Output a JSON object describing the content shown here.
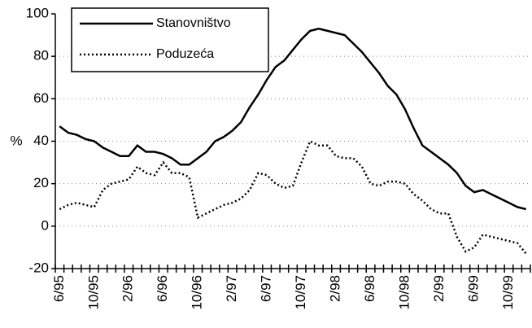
{
  "chart_data": {
    "type": "line",
    "ylabel": "%",
    "categories": [
      "6/95",
      null,
      null,
      null,
      "10/95",
      null,
      null,
      null,
      "2/96",
      null,
      null,
      null,
      "6/96",
      null,
      null,
      null,
      "10/96",
      null,
      null,
      null,
      "2/97",
      null,
      null,
      null,
      "6/97",
      null,
      null,
      null,
      "10/97",
      null,
      null,
      null,
      "2/98",
      null,
      null,
      null,
      "6/98",
      null,
      null,
      null,
      "10/98",
      null,
      null,
      null,
      "2/99",
      null,
      null,
      null,
      "6/99",
      null,
      null,
      null,
      "10/99",
      null,
      null
    ],
    "series": [
      {
        "name": "Stanovništvo",
        "color": "#000000",
        "dash": "solid",
        "values": [
          47,
          44,
          43,
          41,
          40,
          37,
          35,
          33,
          33,
          38,
          35,
          35,
          34,
          32,
          29,
          29,
          32,
          35,
          40,
          42,
          45,
          49,
          56,
          62,
          69,
          75,
          78,
          83,
          88,
          92,
          93,
          92,
          91,
          90,
          86,
          82,
          77,
          72,
          66,
          62,
          55,
          46,
          38,
          35,
          32,
          29,
          25,
          19,
          16,
          17,
          15,
          13,
          11,
          9,
          8
        ]
      },
      {
        "name": "Poduzeća",
        "color": "#000000",
        "dash": "dotted",
        "values": [
          8,
          10,
          11,
          10,
          9,
          17,
          20,
          21,
          22,
          28,
          25,
          24,
          30,
          25,
          25,
          23,
          4,
          6,
          8,
          10,
          11,
          13,
          17,
          25,
          24,
          20,
          18,
          19,
          30,
          40,
          38,
          38,
          33,
          32,
          32,
          28,
          20,
          19,
          21,
          21,
          20,
          15,
          12,
          8,
          6,
          6,
          -5,
          -12,
          -10,
          -4,
          -5,
          -6,
          -7,
          -8,
          -13
        ]
      }
    ],
    "ylim": [
      -20,
      100
    ],
    "yticks": [
      -20,
      0,
      20,
      40,
      60,
      80,
      100
    ],
    "grid": true,
    "legend": "upper left"
  }
}
